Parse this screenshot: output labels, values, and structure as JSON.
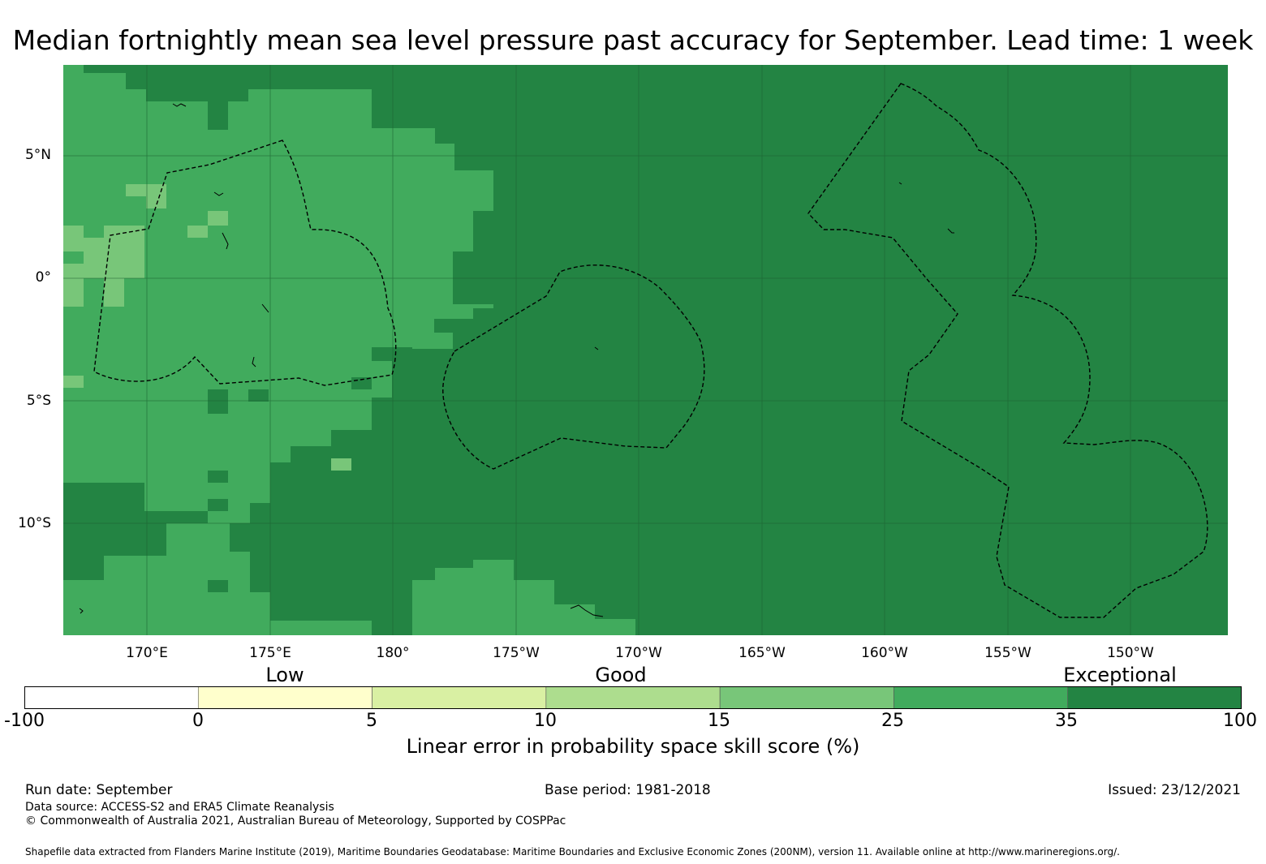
{
  "title": "Median fortnightly mean sea level pressure past accuracy for September. Lead time: 1 week",
  "map": {
    "lat_labels": [
      "5°N",
      "0°",
      "5°S",
      "10°S"
    ],
    "lon_labels": [
      "170°E",
      "175°E",
      "180°",
      "175°W",
      "170°W",
      "165°W",
      "160°W",
      "155°W",
      "150°W"
    ],
    "colors": {
      "exceptional": "#238443",
      "very_good": "#41ab5d",
      "good": "#78c679",
      "gridline": "#1d5f30",
      "eez_line": "#000000"
    }
  },
  "colorbar": {
    "categories": [
      "Low",
      "Good",
      "Exceptional"
    ],
    "ticks": [
      "-100",
      "0",
      "5",
      "10",
      "15",
      "25",
      "35",
      "100"
    ],
    "colors": [
      "#ffffff",
      "#ffffcc",
      "#d9f0a3",
      "#addd8e",
      "#78c679",
      "#41ab5d",
      "#238443"
    ],
    "label": "Linear error in probability space skill score (%)"
  },
  "footer": {
    "run_date": "Run date: September",
    "base_period": "Base period: 1981-2018",
    "issued": "Issued: 23/12/2021",
    "data_source": "Data source: ACCESS-S2 and ERA5 Climate Reanalysis",
    "copyright": "© Commonwealth of Australia 2021, Australian Bureau of Meteorology, Supported by COSPPac",
    "shapefile": "Shapefile data extracted from Flanders Marine Institute (2019), Maritime Boundaries Geodatabase: Maritime Boundaries and Exclusive Economic Zones (200NM), version 11. Available online at http://www.marineregions.org/."
  }
}
